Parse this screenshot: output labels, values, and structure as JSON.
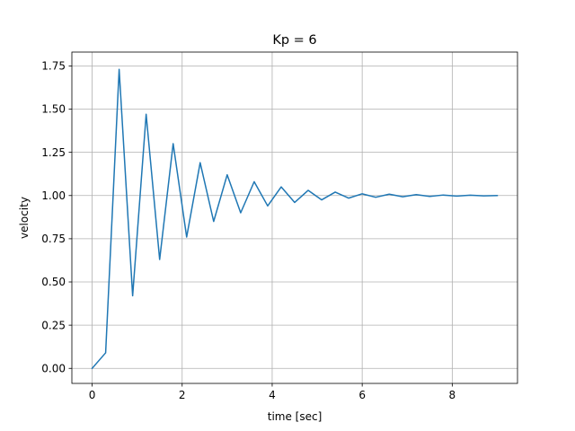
{
  "chart_data": {
    "type": "line",
    "title": "Kp = 6",
    "xlabel": "time [sec]",
    "ylabel": "velocity",
    "xlim": [
      -0.45,
      9.45
    ],
    "ylim": [
      -0.087,
      1.83
    ],
    "xticks": [
      0,
      2,
      4,
      6,
      8
    ],
    "yticks": [
      0.0,
      0.25,
      0.5,
      0.75,
      1.0,
      1.25,
      1.5,
      1.75
    ],
    "xtick_labels": [
      "0",
      "2",
      "4",
      "6",
      "8"
    ],
    "ytick_labels": [
      "0.00",
      "0.25",
      "0.50",
      "0.75",
      "1.00",
      "1.25",
      "1.50",
      "1.75"
    ],
    "grid": true,
    "series": [
      {
        "color": "#1f77b4",
        "x": [
          0,
          0.3,
          0.6,
          0.9,
          1.2,
          1.5,
          1.8,
          2.1,
          2.4,
          2.7,
          3.0,
          3.3,
          3.6,
          3.9,
          4.2,
          4.5,
          4.8,
          5.1,
          5.4,
          5.7,
          6.0,
          6.3,
          6.6,
          6.9,
          7.2,
          7.5,
          7.8,
          8.1,
          8.4,
          8.7,
          9.0
        ],
        "y": [
          0.0,
          0.09,
          1.73,
          0.42,
          1.47,
          0.63,
          1.3,
          0.76,
          1.19,
          0.85,
          1.12,
          0.9,
          1.08,
          0.94,
          1.05,
          0.96,
          1.03,
          0.975,
          1.02,
          0.985,
          1.01,
          0.99,
          1.008,
          0.993,
          1.005,
          0.995,
          1.003,
          0.997,
          1.002,
          0.998,
          1.0
        ]
      }
    ]
  }
}
